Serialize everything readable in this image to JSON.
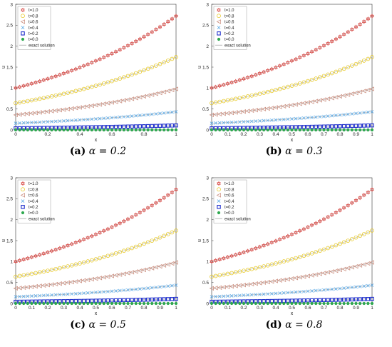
{
  "panels": [
    {
      "label": "(a)",
      "alpha_text": "α = 0.2"
    },
    {
      "label": "(b)",
      "alpha_text": "α = 0.3"
    },
    {
      "label": "(c)",
      "alpha_text": "α = 0.5"
    },
    {
      "label": "(d)",
      "alpha_text": "α = 0.8"
    }
  ],
  "chart_data": [
    {
      "type": "scatter",
      "xlabel": "x",
      "ylabel": "u",
      "xlim": [
        0,
        1
      ],
      "ylim": [
        0,
        3
      ],
      "xticks": [
        "0",
        "0.2",
        "0.4",
        "0.6",
        "0.8",
        "1"
      ],
      "yticks": [
        "0",
        "0.5",
        "1",
        "1.5",
        "2",
        "2.5",
        "3"
      ],
      "legend": [
        "t=1.0",
        "t=0.8",
        "t=0.6",
        "t=0.4",
        "t=0.2",
        "t=0.0",
        "exact solution"
      ],
      "legend_position": "top-left",
      "series": [
        {
          "name": "t=1.0",
          "color": "#d9534f",
          "marker": "hexagram",
          "formula": "t*t*exp(x)"
        },
        {
          "name": "t=0.8",
          "color": "#e6c619",
          "marker": "circle",
          "formula": "t*t*exp(x)"
        },
        {
          "name": "t=0.6",
          "color": "#c98a7a",
          "marker": "triangle-left",
          "formula": "t*t*exp(x)"
        },
        {
          "name": "t=0.4",
          "color": "#5aa9e6",
          "marker": "x",
          "formula": "t*t*exp(x)"
        },
        {
          "name": "t=0.2",
          "color": "#1f2fcc",
          "marker": "square",
          "formula": "t*t*exp(x)"
        },
        {
          "name": "t=0.0",
          "color": "#2ea84f",
          "marker": "dot",
          "formula": "t*t*exp(x)"
        }
      ],
      "exact_solution_color": "#999999"
    },
    {
      "type": "scatter",
      "xlabel": "x",
      "ylabel": "u",
      "xlim": [
        0,
        1
      ],
      "ylim": [
        0,
        3
      ],
      "xticks": [
        "0",
        "0.1",
        "0.2",
        "0.3",
        "0.4",
        "0.5",
        "0.6",
        "0.7",
        "0.8",
        "0.9",
        "1"
      ],
      "yticks": [
        "0",
        "0.5",
        "1",
        "1.5",
        "2",
        "2.5",
        "3"
      ],
      "legend": [
        "t=1.0",
        "t=0.8",
        "t=0.6",
        "t=0.4",
        "t=0.2",
        "t=0.0",
        "exact solution"
      ],
      "legend_position": "top-left",
      "series": [
        {
          "name": "t=1.0",
          "color": "#d9534f",
          "marker": "hexagram",
          "formula": "t*t*exp(x)"
        },
        {
          "name": "t=0.8",
          "color": "#e6c619",
          "marker": "circle",
          "formula": "t*t*exp(x)"
        },
        {
          "name": "t=0.6",
          "color": "#c98a7a",
          "marker": "triangle-left",
          "formula": "t*t*exp(x)"
        },
        {
          "name": "t=0.4",
          "color": "#5aa9e6",
          "marker": "x",
          "formula": "t*t*exp(x)"
        },
        {
          "name": "t=0.2",
          "color": "#1f2fcc",
          "marker": "square",
          "formula": "t*t*exp(x)"
        },
        {
          "name": "t=0.0",
          "color": "#2ea84f",
          "marker": "dot",
          "formula": "t*t*exp(x)"
        }
      ],
      "exact_solution_color": "#999999"
    },
    {
      "type": "scatter",
      "xlabel": "x",
      "ylabel": "u",
      "xlim": [
        0,
        1
      ],
      "ylim": [
        0,
        3
      ],
      "xticks": [
        "0",
        "0.1",
        "0.2",
        "0.3",
        "0.4",
        "0.5",
        "0.6",
        "0.7",
        "0.8",
        "0.9",
        "1"
      ],
      "yticks": [
        "0",
        "0.5",
        "1",
        "1.5",
        "2",
        "2.5",
        "3"
      ],
      "legend": [
        "t=1.0",
        "t=0.8",
        "t=0.6",
        "t=0.4",
        "t=0.2",
        "t=0.0",
        "exact solution"
      ],
      "legend_position": "top-left",
      "series": [
        {
          "name": "t=1.0",
          "color": "#d9534f",
          "marker": "hexagram",
          "formula": "t*t*exp(x)"
        },
        {
          "name": "t=0.8",
          "color": "#e6c619",
          "marker": "circle",
          "formula": "t*t*exp(x)"
        },
        {
          "name": "t=0.6",
          "color": "#c98a7a",
          "marker": "triangle-left",
          "formula": "t*t*exp(x)"
        },
        {
          "name": "t=0.4",
          "color": "#5aa9e6",
          "marker": "x",
          "formula": "t*t*exp(x)"
        },
        {
          "name": "t=0.2",
          "color": "#1f2fcc",
          "marker": "square",
          "formula": "t*t*exp(x)"
        },
        {
          "name": "t=0.0",
          "color": "#2ea84f",
          "marker": "dot",
          "formula": "t*t*exp(x)"
        }
      ],
      "exact_solution_color": "#999999"
    },
    {
      "type": "scatter",
      "xlabel": "x",
      "ylabel": "u",
      "xlim": [
        0,
        1
      ],
      "ylim": [
        0,
        3
      ],
      "xticks": [
        "0",
        "0.1",
        "0.2",
        "0.3",
        "0.4",
        "0.5",
        "0.6",
        "0.7",
        "0.8",
        "0.9",
        "1"
      ],
      "yticks": [
        "0",
        "0.5",
        "1",
        "1.5",
        "2",
        "2.5",
        "3"
      ],
      "legend": [
        "t=1.0",
        "t=0.8",
        "t=0.6",
        "t=0.4",
        "t=0.2",
        "t=0.0",
        "exact solution"
      ],
      "legend_position": "top-left",
      "series": [
        {
          "name": "t=1.0",
          "color": "#d9534f",
          "marker": "hexagram",
          "formula": "t*t*exp(x)"
        },
        {
          "name": "t=0.8",
          "color": "#e6c619",
          "marker": "circle",
          "formula": "t*t*exp(x)"
        },
        {
          "name": "t=0.6",
          "color": "#c98a7a",
          "marker": "triangle-left",
          "formula": "t*t*exp(x)"
        },
        {
          "name": "t=0.4",
          "color": "#5aa9e6",
          "marker": "x",
          "formula": "t*t*exp(x)"
        },
        {
          "name": "t=0.2",
          "color": "#1f2fcc",
          "marker": "square",
          "formula": "t*t*exp(x)"
        },
        {
          "name": "t=0.0",
          "color": "#2ea84f",
          "marker": "dot",
          "formula": "t*t*exp(x)"
        }
      ],
      "exact_solution_color": "#999999"
    }
  ]
}
